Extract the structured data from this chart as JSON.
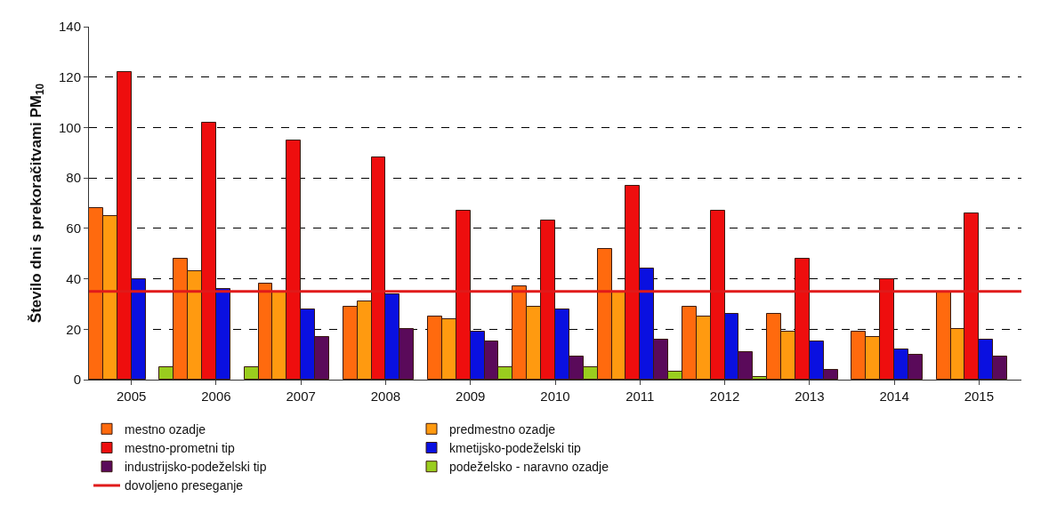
{
  "chart_data": {
    "type": "bar",
    "ylabel": "Število dni s prekoračitvami PM$_{10}$",
    "categories": [
      "2005",
      "2006",
      "2007",
      "2008",
      "2009",
      "2010",
      "2011",
      "2012",
      "2013",
      "2014",
      "2015"
    ],
    "series": [
      {
        "name": "mestno ozadje",
        "color": "#ff6a0e",
        "values": [
          68,
          48,
          38,
          29,
          25,
          37,
          52,
          29,
          26,
          19,
          35
        ]
      },
      {
        "name": "predmestno ozadje",
        "color": "#ff9a10",
        "values": [
          65,
          43,
          35,
          31,
          24,
          29,
          35,
          25,
          19,
          17,
          20
        ]
      },
      {
        "name": "mestno-prometni tip",
        "color": "#ee0e0e",
        "values": [
          122,
          102,
          95,
          88,
          67,
          63,
          77,
          67,
          48,
          40,
          66
        ]
      },
      {
        "name": "kmetijsko-podeželski tip",
        "color": "#0a10e0",
        "values": [
          40,
          36,
          28,
          34,
          19,
          28,
          44,
          26,
          15,
          12,
          16
        ]
      },
      {
        "name": "industrijsko-podeželski tip",
        "color": "#5a0a5a",
        "values": [
          null,
          null,
          17,
          20,
          15,
          9,
          16,
          11,
          4,
          10,
          9
        ]
      },
      {
        "name": "podeželsko - naravno ozadje",
        "color": "#9acd1e",
        "values": [
          5,
          5,
          null,
          null,
          5,
          5,
          3,
          1,
          null,
          null,
          null
        ]
      }
    ],
    "ref_lines": [
      {
        "axis": "y",
        "value": 35,
        "label": "dovoljeno preseganje",
        "color": "#e01a1a"
      }
    ],
    "ylim": [
      0,
      140
    ],
    "yticks": [
      0,
      20,
      40,
      60,
      80,
      100,
      120,
      140
    ],
    "grid": "y",
    "legend": "bottom"
  }
}
